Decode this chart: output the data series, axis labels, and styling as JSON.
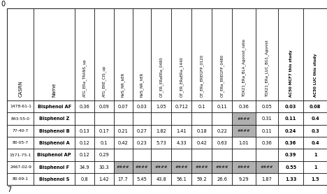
{
  "headers": [
    "CASRN",
    "Name",
    "ATG_ERa_TRANS_up",
    "ATG_ERE_CIS_up",
    "NVS_NR_bER",
    "NVS_NR_hER",
    "OT_ER_ERaERa_0480",
    "OT_ER_ERaERa_1440",
    "OT_ERa_EREGFP_0120",
    "OT_ERa_EREGFP_0480",
    "TOX21_ERa_BLA_Agonist_ratio",
    "TOX21_ERa_LUC_BG1_Agonist",
    "AC50 MCF7 this study",
    "AC50 LUC this study"
  ],
  "rows": [
    [
      "1478-61-1",
      "Bisphenol AF",
      "0.36",
      "0.09",
      "0.07",
      "0.03",
      "1.05",
      "0.712",
      "0.1",
      "0.11",
      "0.36",
      "0.05",
      "0.03",
      "0.08"
    ],
    [
      "843-55-0",
      "Bisphenol Z",
      "",
      "",
      "",
      "",
      "",
      "",
      "",
      "",
      "####",
      "0.31",
      "0.11",
      "0.4"
    ],
    [
      "77-40-7",
      "Bisphenol B",
      "0.13",
      "0.17",
      "0.21",
      "0.27",
      "1.82",
      "1.41",
      "0.18",
      "0.22",
      "####",
      "0.11",
      "0.24",
      "0.3"
    ],
    [
      "80-05-7",
      "Bisphenol A",
      "0.12",
      "0.1",
      "0.42",
      "0.23",
      "5.73",
      "4.33",
      "0.42",
      "0.63",
      "1.01",
      "0.36",
      "0.36",
      "0.4"
    ],
    [
      "1571-75-1",
      "Bisphenol AP",
      "0.12",
      "0.29",
      "",
      "",
      "",
      "",
      "",
      "",
      "",
      "",
      "0.39",
      "1"
    ],
    [
      "2467-02-9",
      "Bisphenol F",
      "34.9",
      "30.3",
      "####",
      "####",
      "####",
      "####",
      "####",
      "####",
      "####",
      "####",
      "0.55",
      "1"
    ],
    [
      "80-09-1",
      "Bisphenol S",
      "0.8",
      "1.42",
      "17.7",
      "5.45",
      "43.8",
      "56.1",
      "59.2",
      "26.6",
      "9.29",
      "1.87",
      "1.33",
      "1.5"
    ]
  ],
  "highlight_cols_per_row": [
    [
      false,
      false,
      false,
      false,
      false,
      false,
      false,
      false,
      false,
      false,
      false,
      false,
      false,
      false
    ],
    [
      false,
      false,
      false,
      false,
      false,
      false,
      false,
      false,
      false,
      false,
      true,
      false,
      false,
      false
    ],
    [
      false,
      false,
      false,
      false,
      false,
      false,
      false,
      false,
      false,
      false,
      true,
      false,
      false,
      false
    ],
    [
      false,
      false,
      false,
      false,
      false,
      false,
      false,
      false,
      false,
      false,
      false,
      false,
      false,
      false
    ],
    [
      false,
      false,
      false,
      false,
      false,
      false,
      false,
      false,
      false,
      false,
      false,
      false,
      false,
      false
    ],
    [
      false,
      false,
      false,
      false,
      true,
      true,
      true,
      true,
      true,
      true,
      true,
      true,
      false,
      false
    ],
    [
      false,
      false,
      false,
      false,
      false,
      false,
      false,
      false,
      false,
      false,
      false,
      false,
      false,
      false
    ]
  ],
  "highlight_color": "#b0b0b0",
  "bold_last_cols": [
    12,
    13
  ],
  "figure_number": "7",
  "label_0": "0"
}
